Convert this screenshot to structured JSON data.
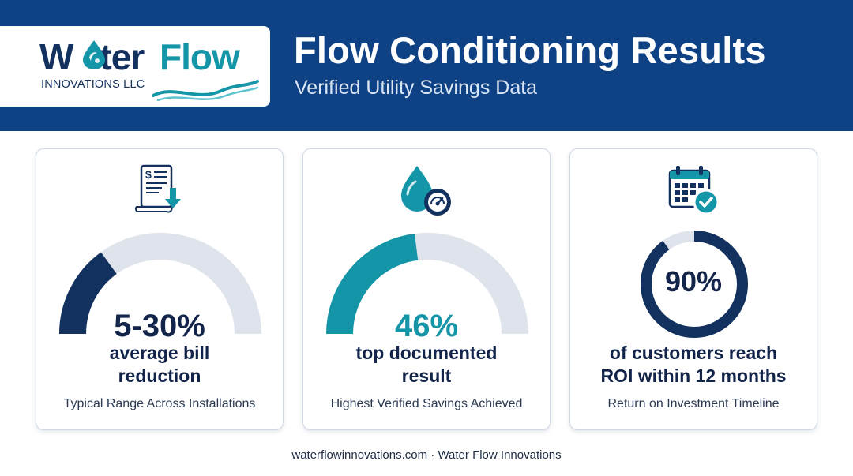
{
  "brand": {
    "logo_word_1": "W",
    "logo_word_1b": "ter",
    "logo_word_2": "Flow",
    "logo_sub": "INNOVATIONS LLC"
  },
  "header": {
    "title": "Flow Conditioning Results",
    "subtitle": "Verified Utility Savings Data"
  },
  "cards": [
    {
      "icon": "bill-down-icon",
      "stat": "5-30%",
      "desc_line1": "average bill",
      "desc_line2": "reduction",
      "caption": "Typical Range Across Installations",
      "gauge_fill": 0.3,
      "color": "#12315f"
    },
    {
      "icon": "water-drop-gauge-icon",
      "stat": "46%",
      "desc_line1": "top documented",
      "desc_line2": "result",
      "caption": "Highest Verified Savings Achieved",
      "gauge_fill": 0.46,
      "color": "#1596a8"
    },
    {
      "icon": "calendar-check-icon",
      "stat": "90%",
      "desc_line1": "of customers reach",
      "desc_line2": "ROI within 12 months",
      "caption": "Return on Investment Timeline",
      "ring_fill": 0.9,
      "color": "#12315f"
    }
  ],
  "footer": {
    "text": "waterflowinnovations.com · Water Flow Innovations"
  },
  "colors": {
    "header_bg": "#0f4285",
    "navy": "#12315f",
    "teal": "#1596a8",
    "track": "#dfe4ec"
  }
}
